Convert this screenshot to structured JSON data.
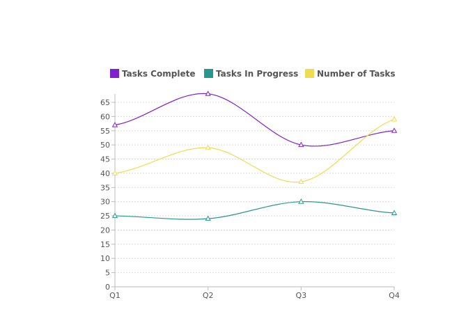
{
  "chart_data": {
    "type": "line",
    "categories": [
      "Q1",
      "Q2",
      "Q3",
      "Q4"
    ],
    "series": [
      {
        "name": "Tasks Complete",
        "color": "#7e22ce",
        "values": [
          57,
          68,
          50,
          55
        ]
      },
      {
        "name": "Tasks In Progress",
        "color": "#26978f",
        "values": [
          25,
          24,
          30,
          26
        ]
      },
      {
        "name": "Number of Tasks",
        "color": "#f0dc50",
        "values": [
          40,
          49,
          37,
          59
        ]
      }
    ],
    "ylim": [
      0,
      65
    ],
    "yticks": [
      0,
      5,
      10,
      15,
      20,
      25,
      30,
      35,
      40,
      45,
      50,
      55,
      60,
      65
    ],
    "grid": true,
    "legend_position": "top",
    "marker": "triangle",
    "smooth": true
  }
}
